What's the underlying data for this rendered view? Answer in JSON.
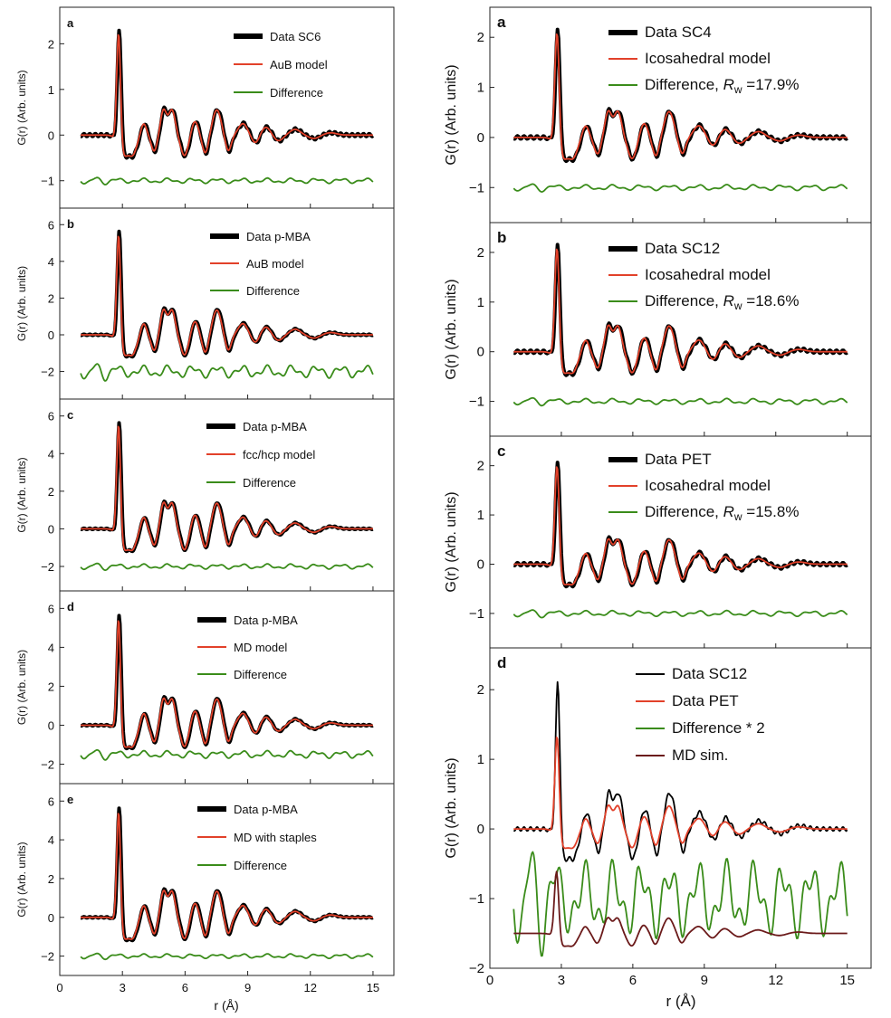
{
  "figure": {
    "left_xlabel": "r (Å)",
    "right_xlabel": "r (Å)",
    "ylabel": "G(r) (Arb. units)"
  },
  "chart_data": [
    {
      "id": "left-a",
      "type": "line",
      "panel_label": "a",
      "xlim": [
        0,
        16
      ],
      "ylim": [
        -1.6,
        2.8
      ],
      "xticks": [],
      "yticks": [
        -1,
        0,
        1,
        2
      ],
      "ylabel": "G(r) (Arb. units)",
      "legend_placement": "top-right",
      "series": [
        {
          "name": "Data SC6",
          "color": "#000000",
          "role": "data",
          "baseline": 0,
          "scale": 2.55
        },
        {
          "name": "AuB model",
          "color": "#e2412a",
          "role": "model",
          "baseline": 0,
          "scale": 2.5
        },
        {
          "name": "Difference",
          "color": "#3a8c1a",
          "role": "diff",
          "baseline": -1,
          "scale": 0.15
        }
      ]
    },
    {
      "id": "left-b",
      "type": "line",
      "panel_label": "b",
      "xlim": [
        0,
        16
      ],
      "ylim": [
        -3.5,
        6.9
      ],
      "xticks": [],
      "yticks": [
        -2,
        0,
        2,
        4,
        6
      ],
      "ylabel": "G(r) (Arb. units)",
      "legend_placement": "top-right",
      "series": [
        {
          "name": "Data p-MBA",
          "color": "#000000",
          "role": "data",
          "baseline": 0,
          "scale": 6.3
        },
        {
          "name": "AuB model",
          "color": "#e2412a",
          "role": "model",
          "baseline": 0,
          "scale": 6.1
        },
        {
          "name": "Difference",
          "color": "#3a8c1a",
          "role": "diff",
          "baseline": -2,
          "scale": 0.9
        }
      ]
    },
    {
      "id": "left-c",
      "type": "line",
      "panel_label": "c",
      "xlim": [
        0,
        16
      ],
      "ylim": [
        -3.3,
        6.9
      ],
      "xticks": [],
      "yticks": [
        -2,
        0,
        2,
        4,
        6
      ],
      "ylabel": "G(r) (Arb. units)",
      "legend_placement": "top-right",
      "series": [
        {
          "name": "Data p-MBA",
          "color": "#000000",
          "role": "data",
          "baseline": 0,
          "scale": 6.3
        },
        {
          "name": "fcc/hcp model",
          "color": "#e2412a",
          "role": "model",
          "baseline": 0,
          "scale": 6.2
        },
        {
          "name": "Difference",
          "color": "#3a8c1a",
          "role": "diff",
          "baseline": -2,
          "scale": 0.35
        }
      ]
    },
    {
      "id": "left-d",
      "type": "line",
      "panel_label": "d",
      "xlim": [
        0,
        16
      ],
      "ylim": [
        -3.0,
        6.9
      ],
      "xticks": [],
      "yticks": [
        -2,
        0,
        2,
        4,
        6
      ],
      "ylabel": "G(r) (Arb. units)",
      "legend_placement": "top-right",
      "series": [
        {
          "name": "Data p-MBA",
          "color": "#000000",
          "role": "data",
          "baseline": 0,
          "scale": 6.3
        },
        {
          "name": "MD model",
          "color": "#e2412a",
          "role": "model",
          "baseline": 0,
          "scale": 6.1
        },
        {
          "name": "Difference",
          "color": "#3a8c1a",
          "role": "diff",
          "baseline": -1.5,
          "scale": 0.5
        }
      ]
    },
    {
      "id": "left-e",
      "type": "line",
      "panel_label": "e",
      "xlim": [
        0,
        16
      ],
      "ylim": [
        -3.0,
        6.9
      ],
      "xticks": [
        0,
        3,
        6,
        9,
        12,
        15
      ],
      "yticks": [
        -2,
        0,
        2,
        4,
        6
      ],
      "ylabel": "G(r) (Arb. units)",
      "legend_placement": "top-right",
      "series": [
        {
          "name": "Data p-MBA",
          "color": "#000000",
          "role": "data",
          "baseline": 0,
          "scale": 6.3
        },
        {
          "name": "MD with staples",
          "color": "#e2412a",
          "role": "model",
          "baseline": 0,
          "scale": 6.1
        },
        {
          "name": "Difference",
          "color": "#3a8c1a",
          "role": "diff",
          "baseline": -2,
          "scale": 0.3
        }
      ]
    },
    {
      "id": "right-a",
      "type": "line",
      "panel_label": "a",
      "xlim": [
        0,
        16
      ],
      "ylim": [
        -1.7,
        2.6
      ],
      "xticks": [],
      "yticks": [
        -1,
        0,
        1,
        2
      ],
      "ylabel": "G(r) (Arb. units)",
      "legend_placement": "top-right",
      "series": [
        {
          "name": "Data SC4",
          "color": "#000000",
          "role": "data",
          "baseline": 0,
          "scale": 2.4
        },
        {
          "name": "Icosahedral model",
          "color": "#e2412a",
          "role": "model",
          "baseline": 0,
          "scale": 2.35
        },
        {
          "name": "Difference, R_w =17.9%",
          "color": "#3a8c1a",
          "role": "diff",
          "baseline": -1,
          "scale": 0.15
        }
      ]
    },
    {
      "id": "right-b",
      "type": "line",
      "panel_label": "b",
      "xlim": [
        0,
        16
      ],
      "ylim": [
        -1.7,
        2.6
      ],
      "xticks": [],
      "yticks": [
        -1,
        0,
        1,
        2
      ],
      "ylabel": "G(r) (Arb. units)",
      "legend_placement": "top-right",
      "series": [
        {
          "name": "Data SC12",
          "color": "#000000",
          "role": "data",
          "baseline": 0,
          "scale": 2.4
        },
        {
          "name": "Icosahedral model",
          "color": "#e2412a",
          "role": "model",
          "baseline": 0,
          "scale": 2.35
        },
        {
          "name": "Difference, R_w =18.6%",
          "color": "#3a8c1a",
          "role": "diff",
          "baseline": -1,
          "scale": 0.15
        }
      ]
    },
    {
      "id": "right-c",
      "type": "line",
      "panel_label": "c",
      "xlim": [
        0,
        16
      ],
      "ylim": [
        -1.7,
        2.6
      ],
      "xticks": [],
      "yticks": [
        -1,
        0,
        1,
        2
      ],
      "ylabel": "G(r) (Arb. units)",
      "legend_placement": "top-right",
      "series": [
        {
          "name": "Data PET",
          "color": "#000000",
          "role": "data",
          "baseline": 0,
          "scale": 2.3
        },
        {
          "name": "Icosahedral model",
          "color": "#e2412a",
          "role": "model",
          "baseline": 0,
          "scale": 2.25
        },
        {
          "name": "Difference, R_w =15.8%",
          "color": "#3a8c1a",
          "role": "diff",
          "baseline": -1,
          "scale": 0.15
        }
      ]
    },
    {
      "id": "right-d",
      "type": "line",
      "panel_label": "d",
      "xlim": [
        0,
        16
      ],
      "ylim": [
        -2,
        2.6
      ],
      "xticks": [
        0,
        3,
        6,
        9,
        12,
        15
      ],
      "yticks": [
        -2,
        -1,
        0,
        1,
        2
      ],
      "ylabel": "G(r) (Arb. units)",
      "legend_placement": "top-right",
      "series": [
        {
          "name": "Data SC12",
          "color": "#000000",
          "role": "data",
          "baseline": 0,
          "scale": 2.35
        },
        {
          "name": "Data PET",
          "color": "#e2412a",
          "role": "model",
          "baseline": 0,
          "scale": 1.5
        },
        {
          "name": "Difference * 2",
          "color": "#3a8c1a",
          "role": "diff",
          "baseline": -1,
          "scale": 1.45
        },
        {
          "name": "MD sim.",
          "color": "#6b1a1a",
          "role": "sim",
          "baseline": -1.5,
          "scale": 1.05
        }
      ]
    }
  ]
}
